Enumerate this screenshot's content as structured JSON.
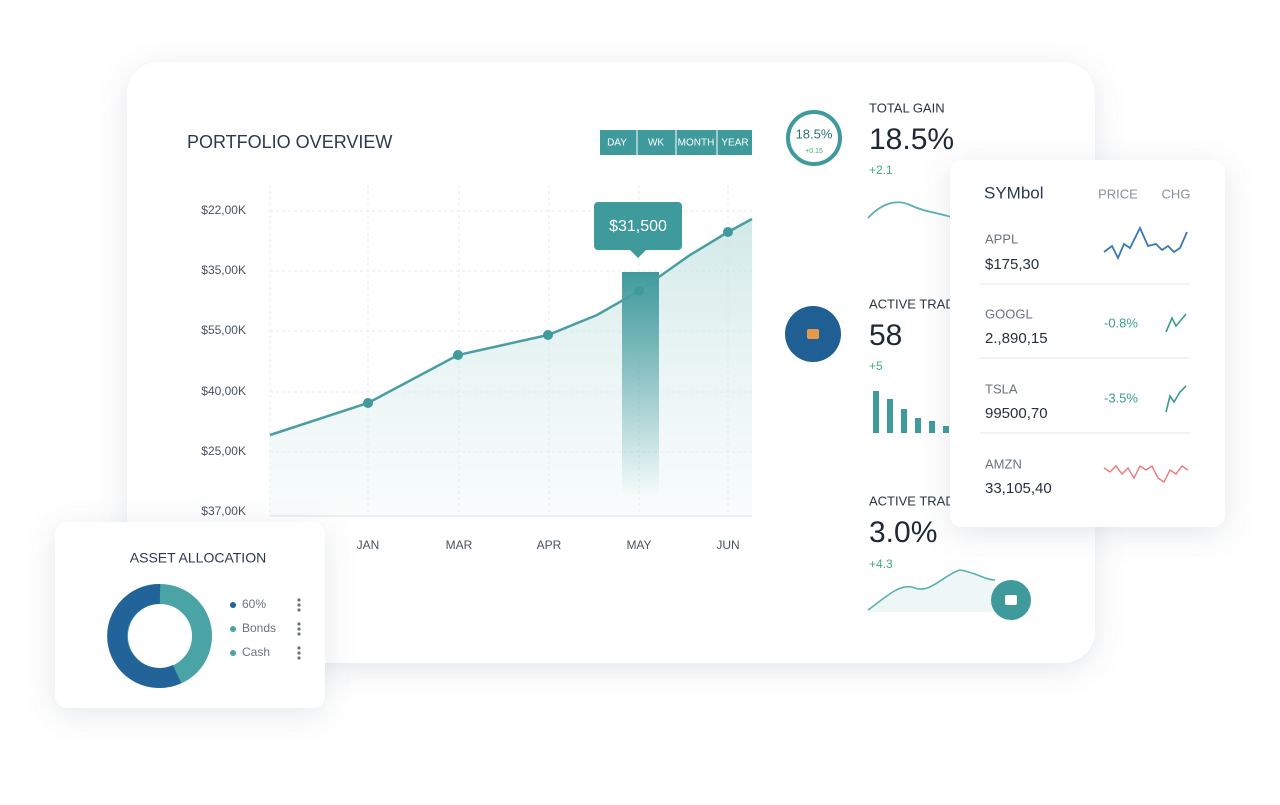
{
  "overview": {
    "title": "PORTFOLIO OVERVIEW",
    "ranges": [
      "DAY",
      "WK",
      "MONTH",
      "YEAR"
    ],
    "y_labels": [
      "$22,00K",
      "$35,00K",
      "$55,00K",
      "$40,00K",
      "$25,00K",
      "$37,00K"
    ],
    "x_labels": [
      "JAN",
      "MAR",
      "APR",
      "MAY",
      "JUN"
    ],
    "tooltip": "$31,500"
  },
  "stats": [
    {
      "ring": "18.5%",
      "ring_sub": "+0.15",
      "label": "TOTAL GAIN",
      "value": "18.5%",
      "change": "+2.1"
    },
    {
      "label": "ACTIVE TRADE",
      "value": "58",
      "change": "+5"
    },
    {
      "label": "ACTIVE TRADE",
      "value": "3.0%",
      "change": "+4.3"
    }
  ],
  "symbols": {
    "headers": [
      "SYMbol",
      "PRICE",
      "CHG"
    ],
    "rows": [
      {
        "symbol": "APPL",
        "price": "$175,30"
      },
      {
        "symbol": "GOOGL",
        "price": "2.,890,15",
        "change": "-0.8%"
      },
      {
        "symbol": "TSLA",
        "price": "99500,70",
        "change": "-3.5%"
      },
      {
        "symbol": "AMZN",
        "price": "33,105,40"
      }
    ]
  },
  "allocation": {
    "title": "ASSET ALLOCATION",
    "legend": [
      "60%",
      "Bonds",
      "Cash"
    ]
  }
}
